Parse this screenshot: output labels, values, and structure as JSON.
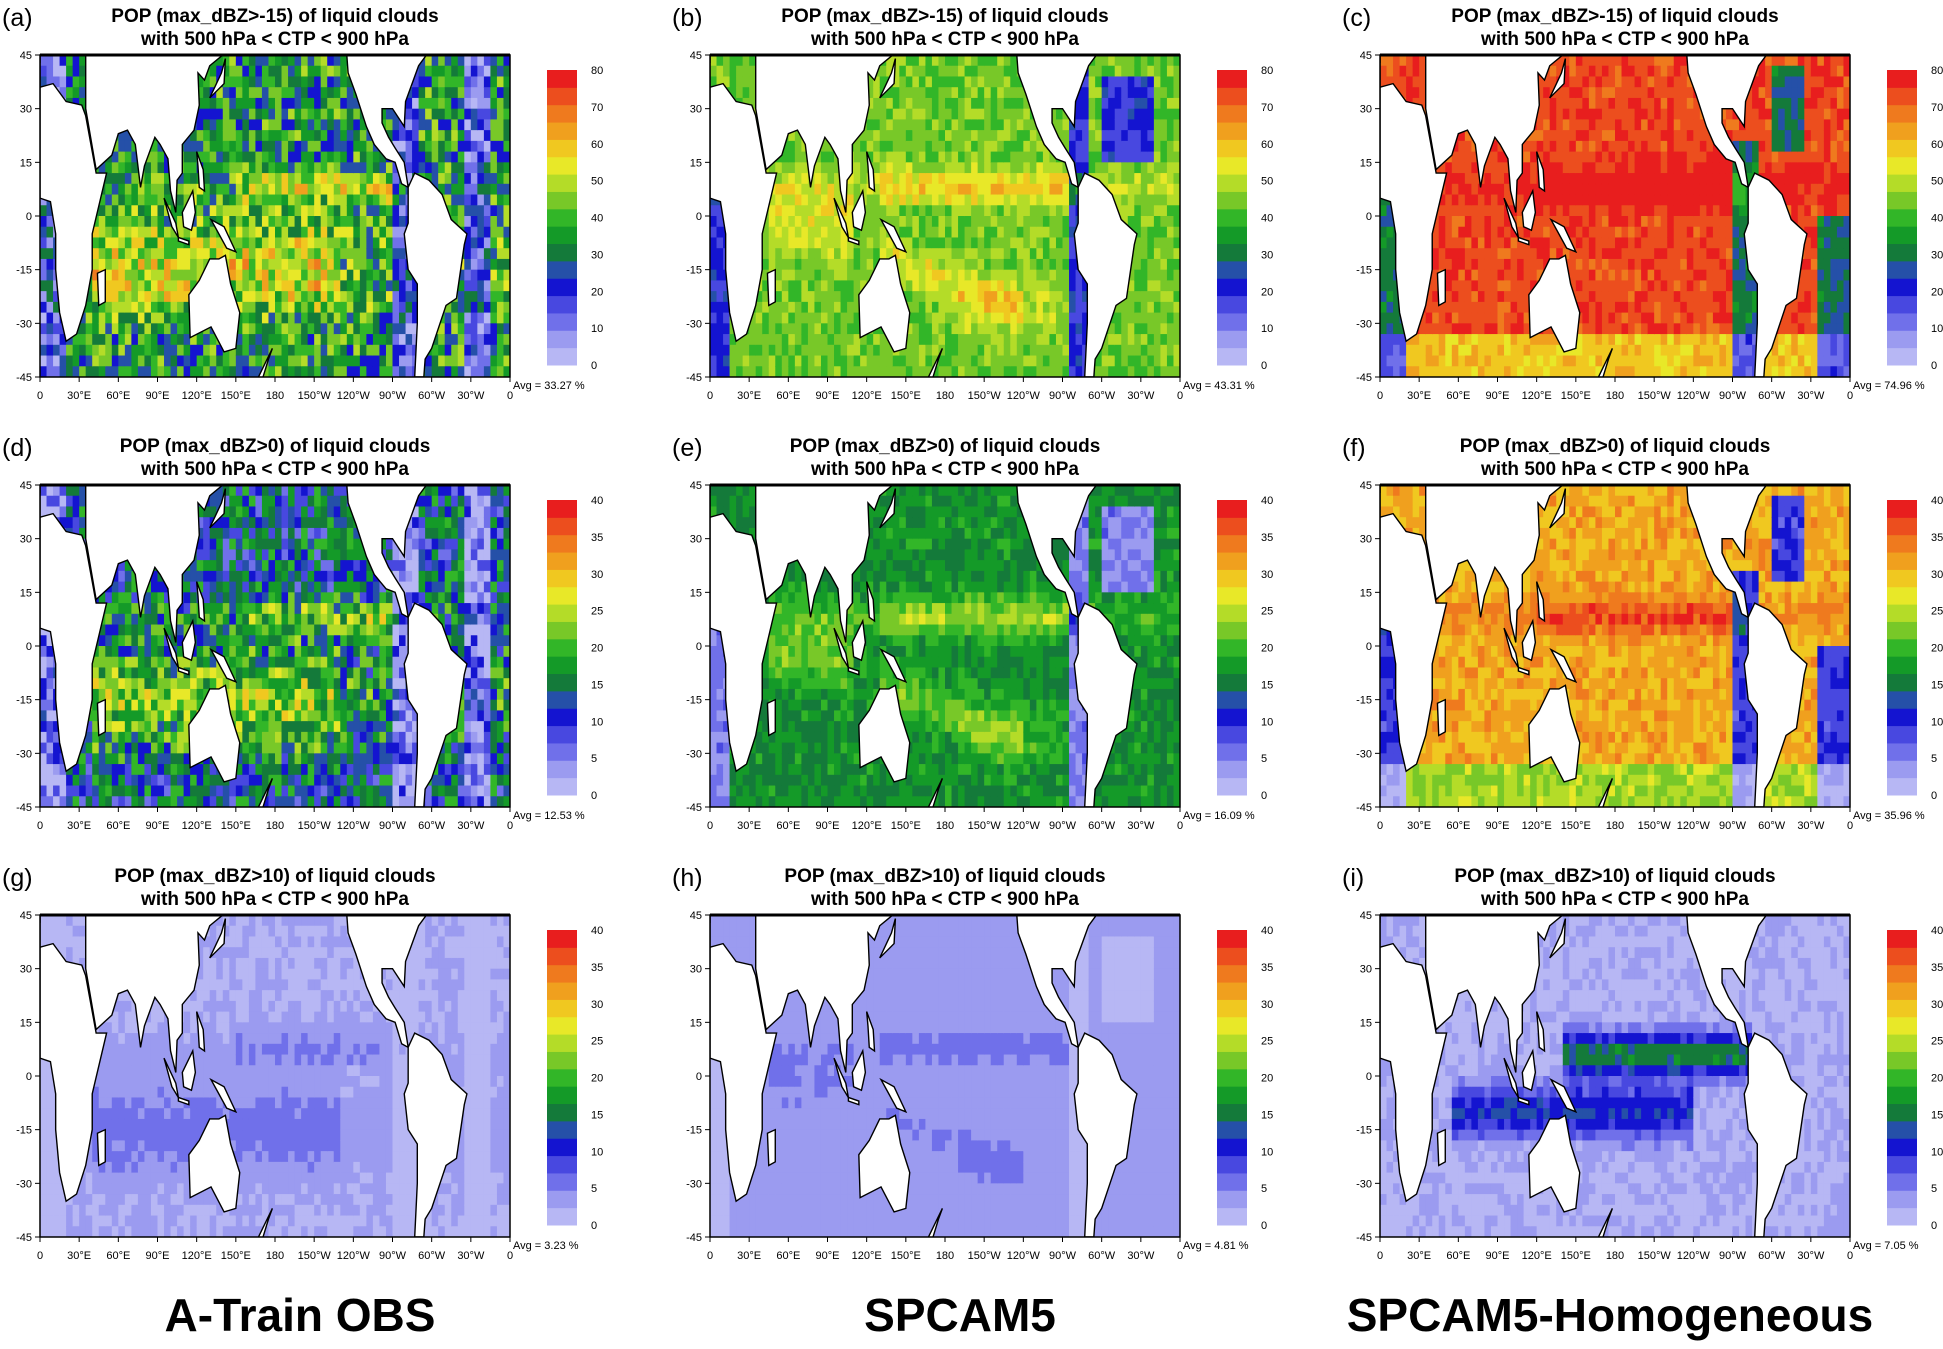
{
  "panels": [
    {
      "label": "(a)",
      "title1": "POP (max_dBZ>-15) of liquid clouds",
      "title2": "with 500 hPa < CTP < 900 hPa",
      "avg": "Avg = 33.27 %",
      "cbar_ticks": [
        "80",
        "70",
        "60",
        "50",
        "40",
        "30",
        "20",
        "10",
        "0"
      ],
      "field": {
        "base": 0.42,
        "noise": 0.18,
        "variant": "obs",
        "strength": 1.0
      }
    },
    {
      "label": "(b)",
      "title1": "POP (max_dBZ>-15) of liquid clouds",
      "title2": "with 500 hPa < CTP < 900 hPa",
      "avg": "Avg = 43.31 %",
      "cbar_ticks": [
        "80",
        "70",
        "60",
        "50",
        "40",
        "30",
        "20",
        "10",
        "0"
      ],
      "field": {
        "base": 0.55,
        "noise": 0.06,
        "variant": "model",
        "strength": 1.0
      }
    },
    {
      "label": "(c)",
      "title1": "POP (max_dBZ>-15) of liquid clouds",
      "title2": "with 500 hPa < CTP < 900 hPa",
      "avg": "Avg = 74.96 %",
      "cbar_ticks": [
        "80",
        "70",
        "60",
        "50",
        "40",
        "30",
        "20",
        "10",
        "0"
      ],
      "field": {
        "base": 0.92,
        "noise": 0.05,
        "variant": "homog",
        "strength": 1.0
      }
    },
    {
      "label": "(d)",
      "title1": "POP (max_dBZ>0) of liquid clouds",
      "title2": "with 500 hPa < CTP < 900 hPa",
      "avg": "Avg = 12.53 %",
      "cbar_ticks": [
        "40",
        "35",
        "30",
        "25",
        "20",
        "15",
        "10",
        "5",
        "0"
      ],
      "field": {
        "base": 0.33,
        "noise": 0.18,
        "variant": "obs",
        "strength": 1.0
      }
    },
    {
      "label": "(e)",
      "title1": "POP (max_dBZ>0) of liquid clouds",
      "title2": "with 500 hPa < CTP < 900 hPa",
      "avg": "Avg = 16.09 %",
      "cbar_ticks": [
        "40",
        "35",
        "30",
        "25",
        "20",
        "15",
        "10",
        "5",
        "0"
      ],
      "field": {
        "base": 0.42,
        "noise": 0.06,
        "variant": "model",
        "strength": 1.0
      }
    },
    {
      "label": "(f)",
      "title1": "POP (max_dBZ>0) of liquid clouds",
      "title2": "with 500 hPa < CTP < 900 hPa",
      "avg": "Avg = 35.96 %",
      "cbar_ticks": [
        "40",
        "35",
        "30",
        "25",
        "20",
        "15",
        "10",
        "5",
        "0"
      ],
      "field": {
        "base": 0.78,
        "noise": 0.06,
        "variant": "homog",
        "strength": 1.0
      }
    },
    {
      "label": "(g)",
      "title1": "POP (max_dBZ>10) of liquid clouds",
      "title2": "with 500 hPa < CTP < 900 hPa",
      "avg": "Avg = 3.23 %",
      "cbar_ticks": [
        "40",
        "35",
        "30",
        "25",
        "20",
        "15",
        "10",
        "5",
        "0"
      ],
      "field": {
        "base": 0.1,
        "noise": 0.06,
        "variant": "obs",
        "strength": 0.35
      }
    },
    {
      "label": "(h)",
      "title1": "POP (max_dBZ>10) of liquid clouds",
      "title2": "with 500 hPa < CTP < 900 hPa",
      "avg": "Avg = 4.81 %",
      "cbar_ticks": [
        "40",
        "35",
        "30",
        "25",
        "20",
        "15",
        "10",
        "5",
        "0"
      ],
      "field": {
        "base": 0.13,
        "noise": 0.03,
        "variant": "model",
        "strength": 0.4
      }
    },
    {
      "label": "(i)",
      "title1": "POP (max_dBZ>10) of liquid clouds",
      "title2": "with 500 hPa < CTP < 900 hPa",
      "avg": "Avg = 7.05 %",
      "cbar_ticks": [
        "40",
        "35",
        "30",
        "25",
        "20",
        "15",
        "10",
        "5",
        "0"
      ],
      "field": {
        "base": 0.16,
        "noise": 0.04,
        "variant": "homog",
        "strength": 0.65
      }
    }
  ],
  "lon_ticks": [
    "0",
    "30°E",
    "60°E",
    "90°E",
    "120°E",
    "150°E",
    "180",
    "150°W",
    "120°W",
    "90°W",
    "60°W",
    "30°W",
    "0"
  ],
  "lat_ticks": [
    "45",
    "30",
    "15",
    "0",
    "-15",
    "-30",
    "-45"
  ],
  "colors": [
    "#b7b7f4",
    "#9b9bf0",
    "#7070ea",
    "#4848e0",
    "#1414d0",
    "#2550a8",
    "#147a3a",
    "#149a28",
    "#32b628",
    "#78c828",
    "#b4dc28",
    "#e8e828",
    "#f0c820",
    "#f0a01e",
    "#ef7a1e",
    "#ec4e1e",
    "#e81e1e"
  ],
  "footer": [
    "A-Train OBS",
    "SPCAM5",
    "SPCAM5-Homogeneous"
  ]
}
